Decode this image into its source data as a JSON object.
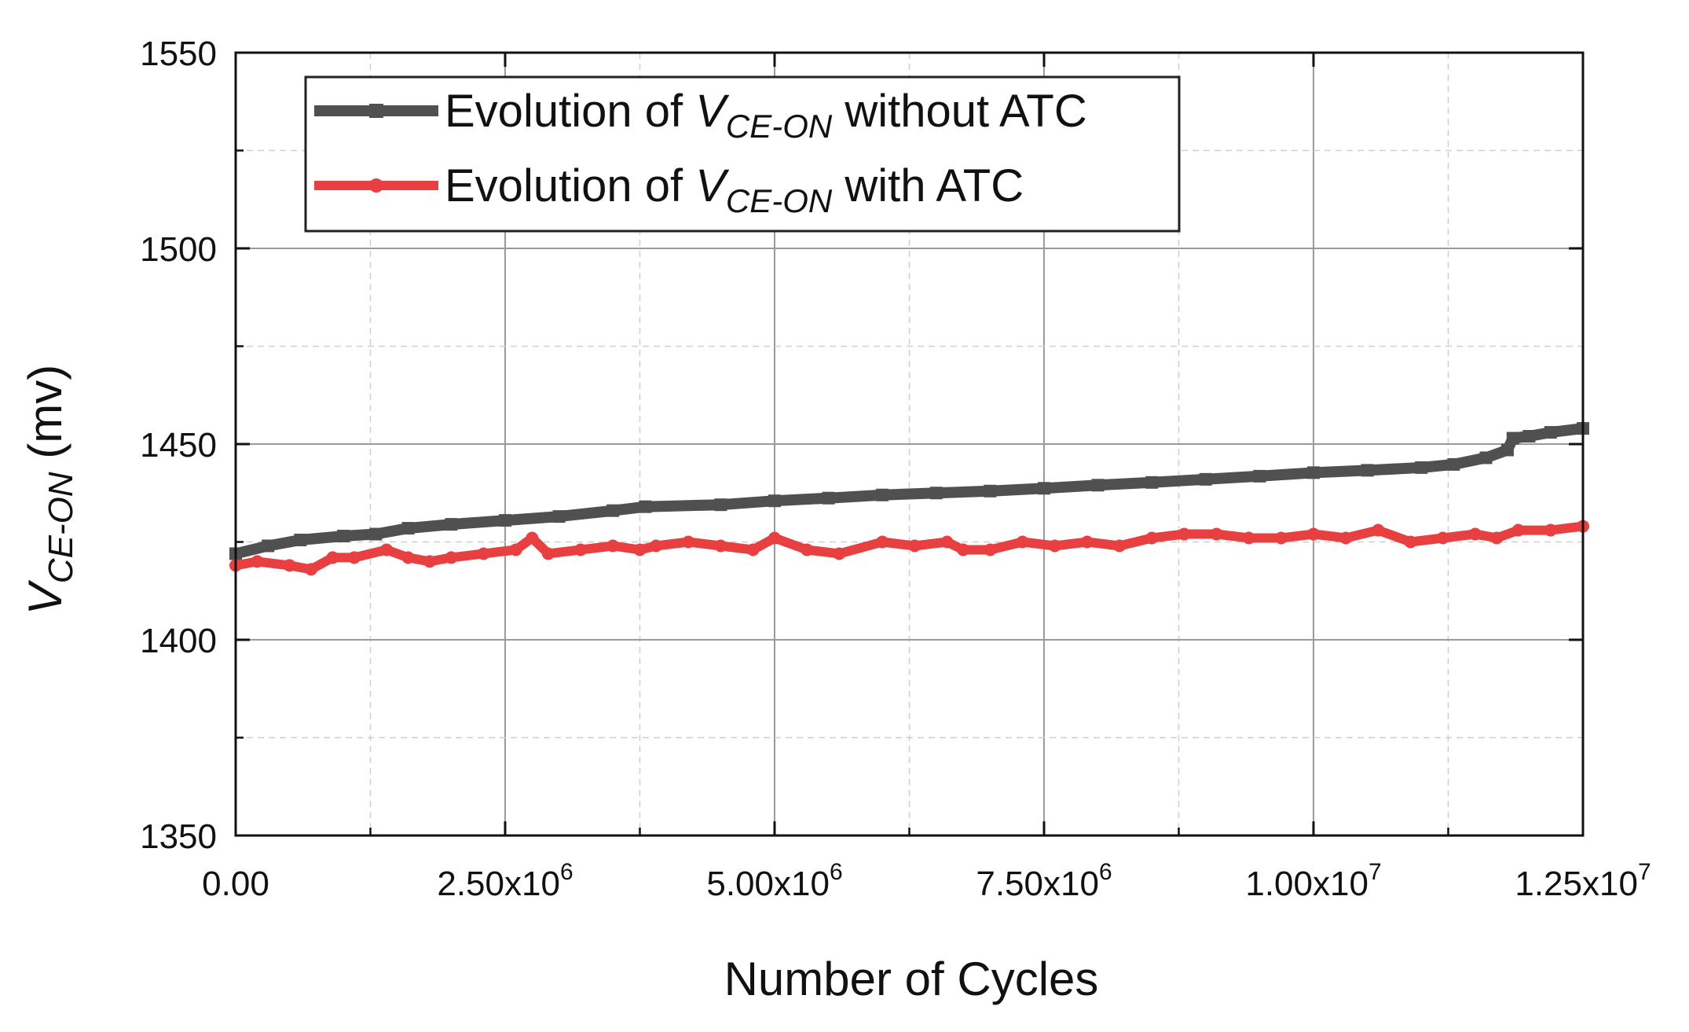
{
  "chart_data": {
    "type": "line",
    "title": "",
    "xlabel": "Number of Cycles",
    "ylabel": {
      "main": "V",
      "subscript": "CE-ON",
      "unit": " (mv)"
    },
    "xlim": [
      0,
      12500000
    ],
    "ylim": [
      1350,
      1550
    ],
    "x_major_ticks": [
      0,
      2500000,
      5000000,
      7500000,
      10000000,
      12500000
    ],
    "x_tick_labels": [
      {
        "mantissa": "0.00",
        "exp": ""
      },
      {
        "mantissa": "2.50x10",
        "exp": "6"
      },
      {
        "mantissa": "5.00x10",
        "exp": "6"
      },
      {
        "mantissa": "7.50x10",
        "exp": "6"
      },
      {
        "mantissa": "1.00x10",
        "exp": "7"
      },
      {
        "mantissa": "1.25x10",
        "exp": "7"
      }
    ],
    "y_major_ticks": [
      1350,
      1400,
      1450,
      1500,
      1550
    ],
    "y_tick_labels": [
      "1350",
      "1400",
      "1450",
      "1500",
      "1550"
    ],
    "grid": true,
    "legend_position": "top-left",
    "series": [
      {
        "name": "Evolution of V_CE-ON without ATC",
        "legend": {
          "prefix": "Evolution of ",
          "var": "V",
          "sub": "CE-ON",
          "suffix": " without ATC"
        },
        "color": "#505050",
        "marker": "square",
        "x": [
          0,
          300000,
          600000,
          1000000,
          1300000,
          1600000,
          2000000,
          2500000,
          3000000,
          3500000,
          3800000,
          4500000,
          5000000,
          5500000,
          6000000,
          6500000,
          7000000,
          7500000,
          8000000,
          8500000,
          9000000,
          9500000,
          10000000,
          10500000,
          11000000,
          11300000,
          11600000,
          11800000,
          11850000,
          12000000,
          12200000,
          12500000
        ],
        "y": [
          1422,
          1424,
          1425.5,
          1426.5,
          1427,
          1428.5,
          1429.5,
          1430.5,
          1431.5,
          1433,
          1434,
          1434.5,
          1435.5,
          1436.2,
          1437,
          1437.5,
          1438,
          1438.7,
          1439.5,
          1440.2,
          1441,
          1441.8,
          1442.7,
          1443.3,
          1444,
          1444.8,
          1446.5,
          1448.5,
          1451.5,
          1452,
          1453,
          1454
        ]
      },
      {
        "name": "Evolution of V_CE-ON with ATC",
        "legend": {
          "prefix": "Evolution of ",
          "var": "V",
          "sub": "CE-ON",
          "suffix": " with ATC"
        },
        "color": "#e84040",
        "marker": "circle",
        "x": [
          0,
          200000,
          500000,
          700000,
          900000,
          1100000,
          1400000,
          1600000,
          1800000,
          2000000,
          2300000,
          2600000,
          2750000,
          2900000,
          3200000,
          3500000,
          3750000,
          3900000,
          4200000,
          4500000,
          4800000,
          5000000,
          5300000,
          5600000,
          6000000,
          6300000,
          6600000,
          6750000,
          7000000,
          7300000,
          7600000,
          7900000,
          8200000,
          8500000,
          8800000,
          9100000,
          9400000,
          9700000,
          10000000,
          10300000,
          10600000,
          10900000,
          11200000,
          11500000,
          11700000,
          11900000,
          12200000,
          12500000
        ],
        "y": [
          1419,
          1420,
          1419,
          1418,
          1421,
          1421,
          1423,
          1421,
          1420,
          1421,
          1422,
          1423,
          1426,
          1422,
          1423,
          1424,
          1423,
          1424,
          1425,
          1424,
          1423,
          1426,
          1423,
          1422,
          1425,
          1424,
          1425,
          1423,
          1423,
          1425,
          1424,
          1425,
          1424,
          1426,
          1427,
          1427,
          1426,
          1426,
          1427,
          1426,
          1428,
          1425,
          1426,
          1427,
          1426,
          1428,
          1428,
          1429
        ]
      }
    ]
  }
}
